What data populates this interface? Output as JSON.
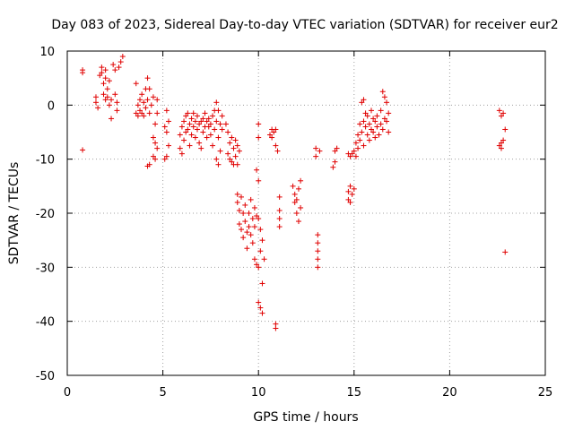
{
  "chart_data": {
    "type": "scatter",
    "title": "Day 083 of 2023, Sidereal Day-to-day VTEC variation (SDTVAR) for receiver eur2",
    "xlabel": "GPS time / hours",
    "ylabel": "SDTVAR / TECUs",
    "xlim": [
      0,
      25
    ],
    "ylim": [
      -50,
      10
    ],
    "x_ticks": [
      0,
      5,
      10,
      15,
      20,
      25
    ],
    "y_ticks": [
      10,
      0,
      -10,
      -20,
      -30,
      -40,
      -50
    ],
    "x_tick_labels": [
      "0",
      "5",
      "10",
      "15",
      "20",
      "25"
    ],
    "y_tick_labels": [
      "10",
      "0",
      "-10",
      "-20",
      "-30",
      "-40",
      "-50"
    ],
    "grid": true,
    "marker": "plus",
    "color": "#e00000",
    "series": [
      {
        "name": "SDTVAR",
        "points": [
          [
            0.8,
            6.5
          ],
          [
            0.8,
            6.0
          ],
          [
            0.8,
            -8.3
          ],
          [
            1.5,
            1.5
          ],
          [
            1.5,
            0.5
          ],
          [
            1.6,
            -0.5
          ],
          [
            1.7,
            5.5
          ],
          [
            1.8,
            7.0
          ],
          [
            1.8,
            6.0
          ],
          [
            1.9,
            4.0
          ],
          [
            1.9,
            2.0
          ],
          [
            2.0,
            6.5
          ],
          [
            2.0,
            5.0
          ],
          [
            2.0,
            1.0
          ],
          [
            2.1,
            3.0
          ],
          [
            2.1,
            1.5
          ],
          [
            2.2,
            4.5
          ],
          [
            2.2,
            0.0
          ],
          [
            2.3,
            -2.5
          ],
          [
            2.3,
            1.0
          ],
          [
            2.4,
            7.5
          ],
          [
            2.5,
            6.5
          ],
          [
            2.5,
            2.0
          ],
          [
            2.6,
            0.5
          ],
          [
            2.6,
            -1.0
          ],
          [
            2.7,
            7.0
          ],
          [
            2.8,
            8.0
          ],
          [
            2.9,
            9.0
          ],
          [
            3.6,
            4.0
          ],
          [
            3.6,
            -1.5
          ],
          [
            3.7,
            0.0
          ],
          [
            3.7,
            -2.0
          ],
          [
            3.8,
            1.0
          ],
          [
            3.8,
            -1.0
          ],
          [
            3.9,
            2.0
          ],
          [
            3.9,
            -1.5
          ],
          [
            4.0,
            0.5
          ],
          [
            4.0,
            -2.0
          ],
          [
            4.1,
            3.0
          ],
          [
            4.1,
            -0.5
          ],
          [
            4.2,
            5.0
          ],
          [
            4.2,
            1.0
          ],
          [
            4.2,
            -11.3
          ],
          [
            4.3,
            3.0
          ],
          [
            4.3,
            -1.5
          ],
          [
            4.3,
            -11.0
          ],
          [
            4.4,
            0.0
          ],
          [
            4.5,
            1.5
          ],
          [
            4.5,
            -6.0
          ],
          [
            4.5,
            -9.5
          ],
          [
            4.6,
            -3.5
          ],
          [
            4.6,
            -7.0
          ],
          [
            4.6,
            -10.0
          ],
          [
            4.7,
            1.0
          ],
          [
            4.7,
            -8.0
          ],
          [
            4.7,
            -1.5
          ],
          [
            5.1,
            -4.0
          ],
          [
            5.1,
            -10.0
          ],
          [
            5.2,
            -5.0
          ],
          [
            5.2,
            -9.5
          ],
          [
            5.2,
            -1.0
          ],
          [
            5.3,
            -3.0
          ],
          [
            5.3,
            -7.5
          ],
          [
            5.9,
            -8.0
          ],
          [
            5.9,
            -5.5
          ],
          [
            6.0,
            -4.0
          ],
          [
            6.0,
            -9.0
          ],
          [
            6.1,
            -3.0
          ],
          [
            6.1,
            -6.5
          ],
          [
            6.2,
            -2.0
          ],
          [
            6.2,
            -5.0
          ],
          [
            6.3,
            -1.5
          ],
          [
            6.3,
            -4.5
          ],
          [
            6.4,
            -3.5
          ],
          [
            6.4,
            -7.5
          ],
          [
            6.5,
            -2.5
          ],
          [
            6.5,
            -5.5
          ],
          [
            6.6,
            -4.0
          ],
          [
            6.6,
            -1.5
          ],
          [
            6.7,
            -3.0
          ],
          [
            6.7,
            -6.0
          ],
          [
            6.8,
            -2.0
          ],
          [
            6.8,
            -4.5
          ],
          [
            6.9,
            -3.5
          ],
          [
            6.9,
            -7.0
          ],
          [
            7.0,
            -3.0
          ],
          [
            7.0,
            -8.0
          ],
          [
            7.1,
            -2.5
          ],
          [
            7.1,
            -5.0
          ],
          [
            7.2,
            -4.0
          ],
          [
            7.2,
            -1.5
          ],
          [
            7.3,
            -3.0
          ],
          [
            7.3,
            -6.0
          ],
          [
            7.4,
            -2.5
          ],
          [
            7.4,
            -4.0
          ],
          [
            7.5,
            -3.5
          ],
          [
            7.5,
            -5.5
          ],
          [
            7.6,
            -2.0
          ],
          [
            7.6,
            -7.5
          ],
          [
            7.7,
            -1.0
          ],
          [
            7.7,
            -4.5
          ],
          [
            7.8,
            0.5
          ],
          [
            7.8,
            -3.0
          ],
          [
            7.8,
            -10.0
          ],
          [
            7.9,
            -1.0
          ],
          [
            7.9,
            -6.0
          ],
          [
            7.9,
            -11.0
          ],
          [
            8.0,
            -3.5
          ],
          [
            8.0,
            -8.5
          ],
          [
            8.1,
            -2.0
          ],
          [
            8.1,
            -4.5
          ],
          [
            8.3,
            -3.5
          ],
          [
            8.4,
            -5.0
          ],
          [
            8.4,
            -9.0
          ],
          [
            8.5,
            -10.0
          ],
          [
            8.5,
            -7.0
          ],
          [
            8.6,
            -10.5
          ],
          [
            8.6,
            -6.0
          ],
          [
            8.7,
            -11.0
          ],
          [
            8.7,
            -8.0
          ],
          [
            8.8,
            -9.5
          ],
          [
            8.8,
            -6.5
          ],
          [
            8.9,
            -7.5
          ],
          [
            8.9,
            -11.0
          ],
          [
            9.0,
            -8.5
          ],
          [
            8.9,
            -16.5
          ],
          [
            8.9,
            -18.0
          ],
          [
            9.0,
            -19.5
          ],
          [
            9.0,
            -22.0
          ],
          [
            9.1,
            -17.0
          ],
          [
            9.1,
            -23.0
          ],
          [
            9.2,
            -20.0
          ],
          [
            9.2,
            -24.5
          ],
          [
            9.3,
            -18.5
          ],
          [
            9.3,
            -21.5
          ],
          [
            9.4,
            -23.5
          ],
          [
            9.4,
            -26.5
          ],
          [
            9.5,
            -22.5
          ],
          [
            9.5,
            -20.0
          ],
          [
            9.6,
            -24.0
          ],
          [
            9.6,
            -17.5
          ],
          [
            9.7,
            -21.0
          ],
          [
            9.7,
            -25.5
          ],
          [
            9.8,
            -19.0
          ],
          [
            9.8,
            -22.5
          ],
          [
            9.8,
            -28.5
          ],
          [
            9.9,
            -20.5
          ],
          [
            9.9,
            -29.5
          ],
          [
            9.9,
            -12.0
          ],
          [
            10.0,
            -3.5
          ],
          [
            10.0,
            -6.0
          ],
          [
            10.0,
            -14.0
          ],
          [
            10.0,
            -21.0
          ],
          [
            10.0,
            -30.0
          ],
          [
            10.0,
            -36.5
          ],
          [
            10.1,
            -23.0
          ],
          [
            10.1,
            -27.0
          ],
          [
            10.1,
            -37.5
          ],
          [
            10.2,
            -25.0
          ],
          [
            10.2,
            -33.0
          ],
          [
            10.2,
            -38.5
          ],
          [
            10.3,
            -28.5
          ],
          [
            10.6,
            -5.5
          ],
          [
            10.7,
            -6.0
          ],
          [
            10.7,
            -4.5
          ],
          [
            10.8,
            -5.0
          ],
          [
            10.9,
            -4.5
          ],
          [
            10.9,
            -7.5
          ],
          [
            10.9,
            -40.5
          ],
          [
            10.9,
            -41.3
          ],
          [
            11.0,
            -8.5
          ],
          [
            11.1,
            -17.0
          ],
          [
            11.1,
            -19.5
          ],
          [
            11.1,
            -21.0
          ],
          [
            11.1,
            -22.5
          ],
          [
            11.8,
            -15.0
          ],
          [
            11.9,
            -16.5
          ],
          [
            11.9,
            -18.0
          ],
          [
            12.0,
            -17.5
          ],
          [
            12.0,
            -20.0
          ],
          [
            12.1,
            -15.5
          ],
          [
            12.1,
            -21.5
          ],
          [
            12.2,
            -19.0
          ],
          [
            12.2,
            -14.0
          ],
          [
            13.0,
            -8.0
          ],
          [
            13.0,
            -9.5
          ],
          [
            13.1,
            -24.0
          ],
          [
            13.1,
            -25.5
          ],
          [
            13.1,
            -27.0
          ],
          [
            13.1,
            -28.5
          ],
          [
            13.1,
            -30.0
          ],
          [
            13.2,
            -8.5
          ],
          [
            13.9,
            -11.5
          ],
          [
            14.0,
            -10.5
          ],
          [
            14.0,
            -8.5
          ],
          [
            14.1,
            -8.0
          ],
          [
            14.7,
            -9.0
          ],
          [
            14.7,
            -16.0
          ],
          [
            14.7,
            -17.5
          ],
          [
            14.8,
            -18.0
          ],
          [
            14.8,
            -15.0
          ],
          [
            14.8,
            -9.5
          ],
          [
            14.9,
            -9.0
          ],
          [
            14.9,
            -16.5
          ],
          [
            15.0,
            -8.5
          ],
          [
            15.0,
            -15.5
          ],
          [
            15.1,
            -9.5
          ],
          [
            15.1,
            -7.0
          ],
          [
            15.2,
            -8.0
          ],
          [
            15.2,
            -5.5
          ],
          [
            15.3,
            -6.5
          ],
          [
            15.3,
            -3.5
          ],
          [
            15.4,
            -5.0
          ],
          [
            15.4,
            0.5
          ],
          [
            15.5,
            -7.5
          ],
          [
            15.5,
            -3.0
          ],
          [
            15.5,
            1.0
          ],
          [
            15.6,
            -4.0
          ],
          [
            15.6,
            -1.5
          ],
          [
            15.7,
            -5.5
          ],
          [
            15.7,
            -2.0
          ],
          [
            15.8,
            -3.5
          ],
          [
            15.8,
            -6.5
          ],
          [
            15.9,
            -1.0
          ],
          [
            15.9,
            -4.5
          ],
          [
            16.0,
            -2.5
          ],
          [
            16.0,
            -5.0
          ],
          [
            16.1,
            -3.0
          ],
          [
            16.1,
            -6.0
          ],
          [
            16.2,
            -4.0
          ],
          [
            16.2,
            -2.0
          ],
          [
            16.3,
            -5.5
          ],
          [
            16.4,
            -3.5
          ],
          [
            16.4,
            -1.0
          ],
          [
            16.5,
            2.5
          ],
          [
            16.5,
            -4.5
          ],
          [
            16.6,
            1.5
          ],
          [
            16.6,
            -2.5
          ],
          [
            16.7,
            0.5
          ],
          [
            16.7,
            -3.0
          ],
          [
            16.8,
            -1.5
          ],
          [
            16.8,
            -5.0
          ],
          [
            22.6,
            -1.0
          ],
          [
            22.6,
            -7.5
          ],
          [
            22.7,
            -2.0
          ],
          [
            22.7,
            -7.0
          ],
          [
            22.7,
            -8.0
          ],
          [
            22.8,
            -1.5
          ],
          [
            22.8,
            -6.5
          ],
          [
            22.9,
            -4.5
          ],
          [
            22.9,
            -27.2
          ]
        ]
      }
    ]
  }
}
